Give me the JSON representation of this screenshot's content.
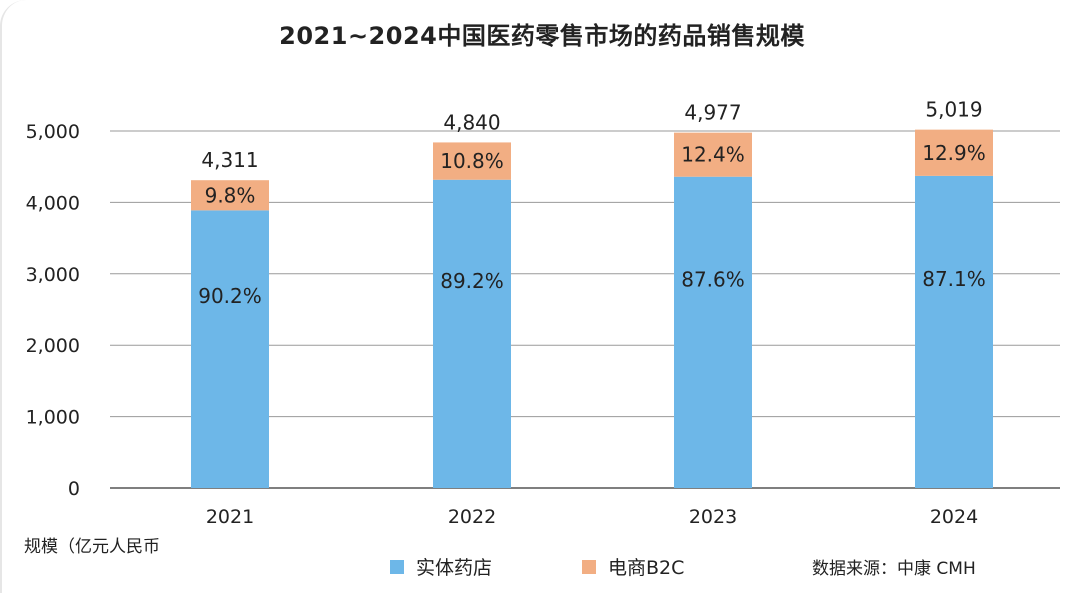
{
  "chart_data": {
    "type": "bar",
    "stacked": true,
    "title": "2021~2024中国医药零售市场的药品销售规模",
    "ylabel": "规模（亿元人民币",
    "xlabel": "",
    "ylim": [
      0,
      5000
    ],
    "yticks": [
      0,
      1000,
      2000,
      3000,
      4000,
      5000
    ],
    "ytick_labels": [
      "0",
      "1,000",
      "2,000",
      "3,000",
      "4,000",
      "5,000"
    ],
    "categories": [
      "2021",
      "2022",
      "2023",
      "2024"
    ],
    "totals": [
      4311,
      4840,
      4977,
      5019
    ],
    "total_labels": [
      "4,311",
      "4,840",
      "4,977",
      "5,019"
    ],
    "series": [
      {
        "name": "实体药店",
        "color": "#6db7e8",
        "share_labels": [
          "90.2%",
          "89.2%",
          "87.6%",
          "87.1%"
        ],
        "share": [
          90.2,
          89.2,
          87.6,
          87.1
        ]
      },
      {
        "name": "电商B2C",
        "color": "#f2ae83",
        "share_labels": [
          "9.8%",
          "10.8%",
          "12.4%",
          "12.9%"
        ],
        "share": [
          9.8,
          10.8,
          12.4,
          12.9
        ]
      }
    ],
    "grid": true,
    "legend_position": "bottom",
    "source": "数据来源：中康 CMH"
  }
}
